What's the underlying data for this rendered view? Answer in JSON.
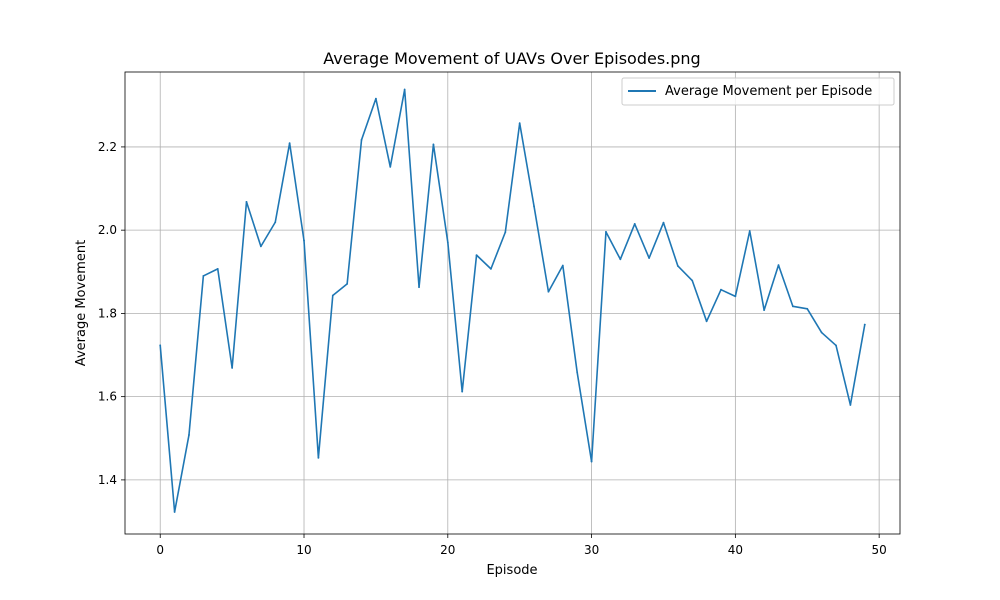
{
  "chart_data": {
    "type": "line",
    "title": "Average Movement of UAVs Over Episodes.png",
    "xlabel": "Episode",
    "ylabel": "Average Movement",
    "xlim": [
      -2.45,
      51.45
    ],
    "ylim": [
      1.27,
      2.38
    ],
    "xticks": [
      0,
      10,
      20,
      30,
      40,
      50
    ],
    "yticks": [
      1.4,
      1.6,
      1.8,
      2.0,
      2.2
    ],
    "ytick_labels": [
      "1.4",
      "1.6",
      "1.8",
      "2.0",
      "2.2"
    ],
    "grid": true,
    "legend_position": "upper-right",
    "series": [
      {
        "name": "Average Movement per Episode",
        "color": "#1f77b4",
        "x": [
          0,
          1,
          2,
          3,
          4,
          5,
          6,
          7,
          8,
          9,
          10,
          11,
          12,
          13,
          14,
          15,
          16,
          17,
          18,
          19,
          20,
          21,
          22,
          23,
          24,
          25,
          26,
          27,
          28,
          29,
          30,
          31,
          32,
          33,
          34,
          35,
          36,
          37,
          38,
          39,
          40,
          41,
          42,
          43,
          44,
          45,
          46,
          47,
          48,
          49
        ],
        "y": [
          1.723,
          1.323,
          1.508,
          1.89,
          1.907,
          1.669,
          2.068,
          1.961,
          2.019,
          2.209,
          1.975,
          1.453,
          1.843,
          1.871,
          2.217,
          2.316,
          2.152,
          2.338,
          1.863,
          2.206,
          1.971,
          1.612,
          1.94,
          1.907,
          1.995,
          2.257,
          2.057,
          1.852,
          1.915,
          1.658,
          1.444,
          1.996,
          1.93,
          2.015,
          1.933,
          2.018,
          1.914,
          1.879,
          1.781,
          1.857,
          1.841,
          1.998,
          1.808,
          1.916,
          1.817,
          1.811,
          1.754,
          1.723,
          1.58,
          1.773
        ]
      }
    ]
  }
}
